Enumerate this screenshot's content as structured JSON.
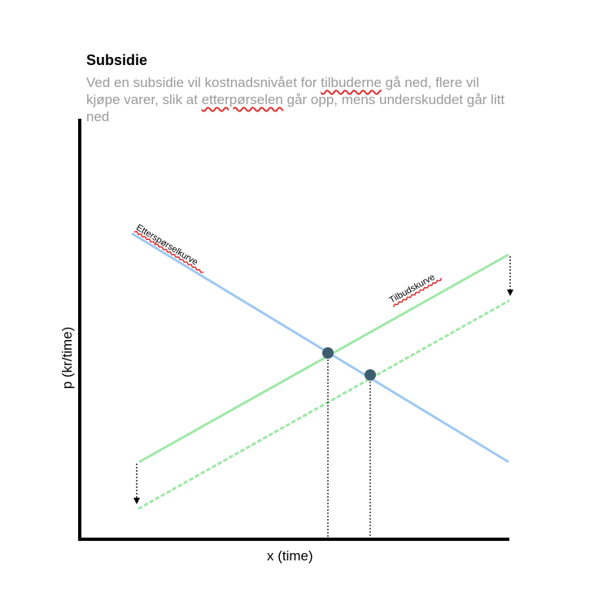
{
  "header": {
    "title": "Subsidie",
    "subtitle_parts": {
      "p1": "Ved en subsidie vil kostnadsnivået for ",
      "u1": "tilbuderne",
      "p2": " gå ned, flere vil kjøpe varer, slik at ",
      "u2": "etterpørselen",
      "p3": " går opp, mens underskuddet går litt ned"
    }
  },
  "axes": {
    "x_label": "x (time)",
    "y_label": "p (kr/time)"
  },
  "curves": {
    "demand_label": "Etterspørselkurve",
    "supply_label": "Tilbudskurve"
  },
  "colors": {
    "demand": "#9ec9f2",
    "supply": "#9ee8a6",
    "point": "#3d5e6e",
    "axis": "#000000",
    "text_muted": "#9a9a9a",
    "spellcheck": "#e03030"
  }
}
